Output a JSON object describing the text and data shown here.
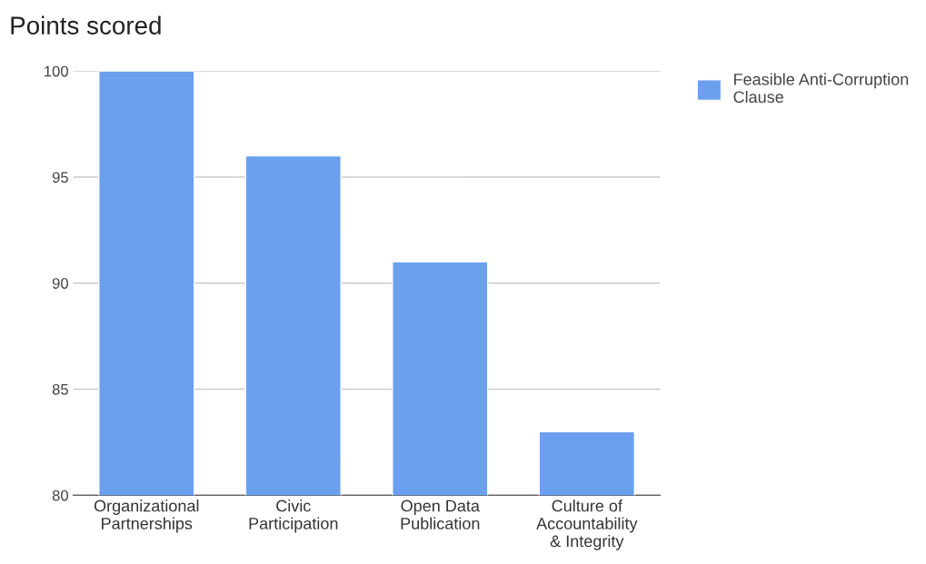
{
  "chart_data": {
    "type": "bar",
    "title": "Points scored",
    "categories": [
      "Organizational\nPartnerships",
      "Civic\nParticipation",
      "Open Data\nPublication",
      "Culture of\nAccountability\n& Integrity"
    ],
    "series": [
      {
        "name": "Feasible Anti-Corruption\nClause",
        "color": "#6aa0ee",
        "values": [
          100,
          96,
          91,
          83
        ]
      }
    ],
    "ylim": [
      80,
      100
    ],
    "yticks": [
      80,
      85,
      90,
      95,
      100
    ],
    "grid": "y",
    "legend": "top right"
  }
}
